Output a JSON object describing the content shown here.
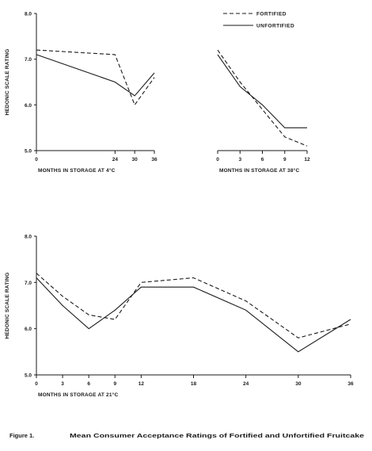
{
  "chart_data": [
    {
      "type": "line",
      "title": "",
      "xlabel": "MONTHS IN STORAGE AT 4°C",
      "ylabel": "HEDONIC SCALE RATING",
      "x_ticks": [
        "0",
        "24",
        "30",
        "36"
      ],
      "y_ticks": [
        "8.0",
        "7.0",
        "6.0",
        "5.0"
      ],
      "ylim": [
        5.0,
        8.0
      ],
      "series": [
        {
          "name": "FORTIFIED",
          "style": "dashed",
          "x": [
            0,
            24,
            30,
            36
          ],
          "y": [
            7.2,
            7.1,
            6.0,
            6.6
          ]
        },
        {
          "name": "UNFORTIFIED",
          "style": "solid",
          "x": [
            0,
            24,
            30,
            36
          ],
          "y": [
            7.1,
            6.5,
            6.2,
            6.7
          ]
        }
      ]
    },
    {
      "type": "line",
      "title": "",
      "xlabel": "MONTHS IN STORAGE AT 38°C",
      "ylabel": "",
      "x_ticks": [
        "0",
        "3",
        "6",
        "9",
        "12"
      ],
      "ylim": [
        5.0,
        8.0
      ],
      "series": [
        {
          "name": "FORTIFIED",
          "style": "dashed",
          "x": [
            0,
            3,
            6,
            9,
            12
          ],
          "y": [
            7.2,
            6.5,
            5.9,
            5.3,
            5.1
          ]
        },
        {
          "name": "UNFORTIFIED",
          "style": "solid",
          "x": [
            0,
            3,
            6,
            9,
            12
          ],
          "y": [
            7.1,
            6.4,
            6.0,
            5.5,
            5.5
          ]
        }
      ]
    },
    {
      "type": "line",
      "title": "",
      "xlabel": "MONTHS IN STORAGE AT 21°C",
      "ylabel": "HEDONIC SCALE RATING",
      "x_ticks": [
        "0",
        "3",
        "6",
        "9",
        "12",
        "18",
        "24",
        "30",
        "36"
      ],
      "y_ticks": [
        "8.0",
        "7.0",
        "6.0",
        "5.0"
      ],
      "ylim": [
        5.0,
        8.0
      ],
      "series": [
        {
          "name": "FORTIFIED",
          "style": "dashed",
          "x": [
            0,
            3,
            6,
            9,
            12,
            18,
            24,
            30,
            36
          ],
          "y": [
            7.2,
            6.7,
            6.3,
            6.2,
            7.0,
            7.1,
            6.6,
            5.8,
            6.1
          ]
        },
        {
          "name": "UNFORTIFIED",
          "style": "solid",
          "x": [
            0,
            3,
            6,
            9,
            12,
            18,
            24,
            30,
            36
          ],
          "y": [
            7.1,
            6.5,
            6.0,
            6.4,
            6.9,
            6.9,
            6.4,
            5.5,
            6.2
          ]
        }
      ]
    }
  ],
  "legend": {
    "fortified": "FORTIFIED",
    "unfortified": "UNFORTIFIED"
  },
  "caption": {
    "label": "Figure   1.",
    "text": "Mean Consumer Acceptance Ratings of Fortified and Unfortified Fruitcake"
  },
  "colors": {
    "ink": "#1a1a1a",
    "background": "#ffffff"
  }
}
